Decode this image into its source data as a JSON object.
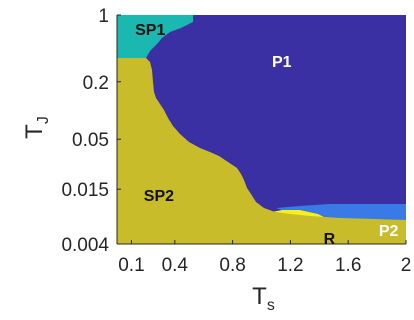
{
  "chart_data": {
    "type": "heatmap",
    "title": "",
    "xlabel": "T",
    "xlabel_sub": "s",
    "ylabel": "T",
    "ylabel_sub": "J",
    "xlim": [
      0,
      2
    ],
    "ylim": [
      0.004,
      1
    ],
    "yscale": "log",
    "xticks": [
      {
        "value": 0.1,
        "label": "0.1"
      },
      {
        "value": 0.4,
        "label": "0.4"
      },
      {
        "value": 0.8,
        "label": "0.8"
      },
      {
        "value": 1.2,
        "label": "1.2"
      },
      {
        "value": 1.6,
        "label": "1.6"
      },
      {
        "value": 2.0,
        "label": "2"
      }
    ],
    "yticks": [
      {
        "value": 1,
        "label": "1"
      },
      {
        "value": 0.2,
        "label": "0.2"
      },
      {
        "value": 0.05,
        "label": "0.05"
      },
      {
        "value": 0.015,
        "label": "0.015"
      },
      {
        "value": 0.004,
        "label": "0.004"
      }
    ],
    "grid": false,
    "legend": "none",
    "regions": [
      {
        "label": "SP1",
        "color": "#1ab8b0",
        "label_color": "#111111",
        "label_at": [
          0.23,
          0.71
        ]
      },
      {
        "label": "P1",
        "color": "#3a2fa3",
        "label_color": "#ffffff",
        "label_at": [
          1.14,
          0.33
        ]
      },
      {
        "label": "SP2",
        "color": "#c9bc2a",
        "label_color": "#111111",
        "label_at": [
          0.29,
          0.013
        ]
      },
      {
        "label": "R",
        "color": "#f5f01a",
        "label_color": "#111111",
        "label_at": [
          1.47,
          0.0046
        ]
      },
      {
        "label": "P2",
        "color": "#3a7ae6",
        "label_color": "#ffffff",
        "label_at": [
          1.88,
          0.0056
        ]
      }
    ]
  }
}
